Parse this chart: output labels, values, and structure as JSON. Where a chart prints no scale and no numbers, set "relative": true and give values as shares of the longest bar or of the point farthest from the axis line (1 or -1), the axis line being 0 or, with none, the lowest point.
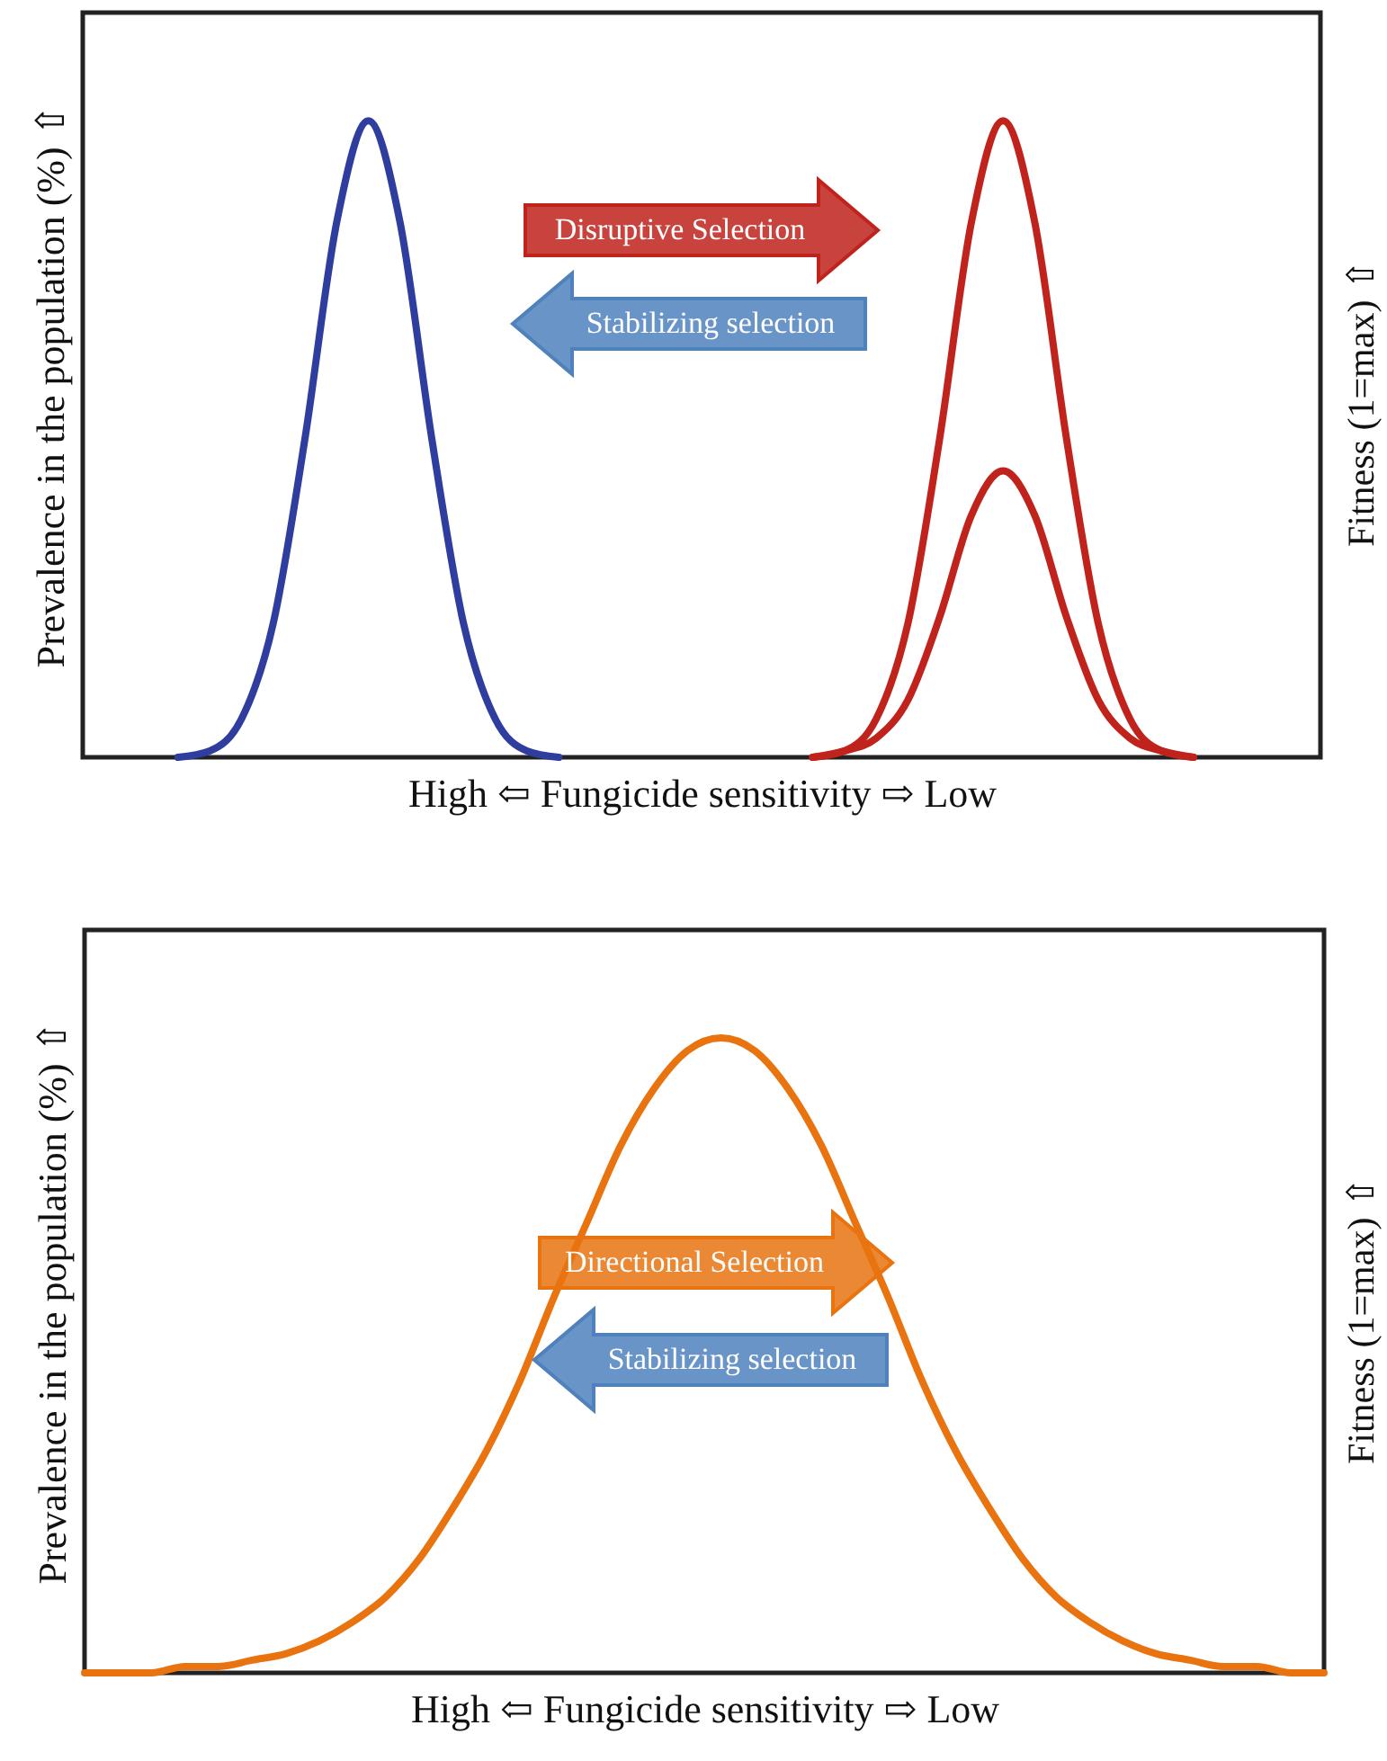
{
  "chart_data": [
    {
      "type": "line",
      "relative": true,
      "xlabel": "High ⇦ Fungicide sensitivity ⇨ Low",
      "ylabel": "Prevalence in the population (%) ⇧",
      "y2label": "Fitness  (1=max) ⇧",
      "annotations": [
        "Disruptive Selection",
        "Stabilizing selection"
      ],
      "categories": [
        null,
        null,
        null,
        null,
        null,
        null,
        null,
        null,
        null,
        null,
        null,
        null,
        null,
        null,
        null,
        null,
        null,
        null,
        null,
        null,
        null,
        null,
        null,
        null,
        null,
        null,
        null,
        null,
        null,
        null,
        null,
        null,
        null,
        null,
        null,
        null,
        null,
        null,
        null,
        null
      ],
      "series": [
        {
          "color": "#2e3d9e",
          "values": [
            null,
            null,
            null,
            0,
            0.01,
            0.06,
            0.21,
            0.5,
            0.84,
            1,
            0.84,
            0.5,
            0.21,
            0.06,
            0.01,
            0,
            null,
            null,
            null,
            null,
            null,
            null,
            null,
            null,
            null,
            null,
            null,
            null,
            null,
            null,
            null,
            null,
            null,
            null,
            null,
            null,
            null,
            null,
            null,
            null
          ]
        },
        {
          "color": "#c0221c",
          "values": [
            null,
            null,
            null,
            null,
            null,
            null,
            null,
            null,
            null,
            null,
            null,
            null,
            null,
            null,
            null,
            null,
            null,
            null,
            null,
            null,
            null,
            null,
            null,
            0,
            0.01,
            0.06,
            0.21,
            0.5,
            0.84,
            1,
            0.84,
            0.5,
            0.21,
            0.06,
            0.01,
            0,
            null,
            null,
            null,
            null
          ]
        },
        {
          "color": "#c0221c",
          "values": [
            null,
            null,
            null,
            null,
            null,
            null,
            null,
            null,
            null,
            null,
            null,
            null,
            null,
            null,
            null,
            null,
            null,
            null,
            null,
            null,
            null,
            null,
            null,
            0,
            0.01,
            0.03,
            0.09,
            0.22,
            0.38,
            0.45,
            0.38,
            0.22,
            0.09,
            0.03,
            0.01,
            0,
            null,
            null,
            null,
            null
          ]
        }
      ]
    },
    {
      "type": "line",
      "relative": true,
      "xlabel": "High ⇦ Fungicide sensitivity ⇨ Low",
      "ylabel": "Prevalence in the population (%) ⇧",
      "y2label": "Fitness  (1=max) ⇧",
      "annotations": [
        "Directional Selection",
        "Stabilizing selection"
      ],
      "categories": [
        null,
        null,
        null,
        null,
        null,
        null,
        null,
        null,
        null,
        null,
        null,
        null,
        null,
        null,
        null,
        null,
        null,
        null,
        null,
        null,
        null,
        null,
        null,
        null,
        null,
        null,
        null,
        null,
        null,
        null,
        null,
        null,
        null,
        null,
        null,
        null,
        null,
        null
      ],
      "series": [
        {
          "color": "#e8730f",
          "values": [
            0,
            0,
            0,
            0.01,
            0.01,
            0.02,
            0.03,
            0.05,
            0.08,
            0.12,
            0.18,
            0.26,
            0.35,
            0.46,
            0.59,
            0.71,
            0.83,
            0.92,
            0.98,
            1,
            0.98,
            0.92,
            0.83,
            0.71,
            0.59,
            0.46,
            0.35,
            0.26,
            0.18,
            0.12,
            0.08,
            0.05,
            0.03,
            0.02,
            0.01,
            0.01,
            0,
            0
          ]
        }
      ]
    }
  ]
}
